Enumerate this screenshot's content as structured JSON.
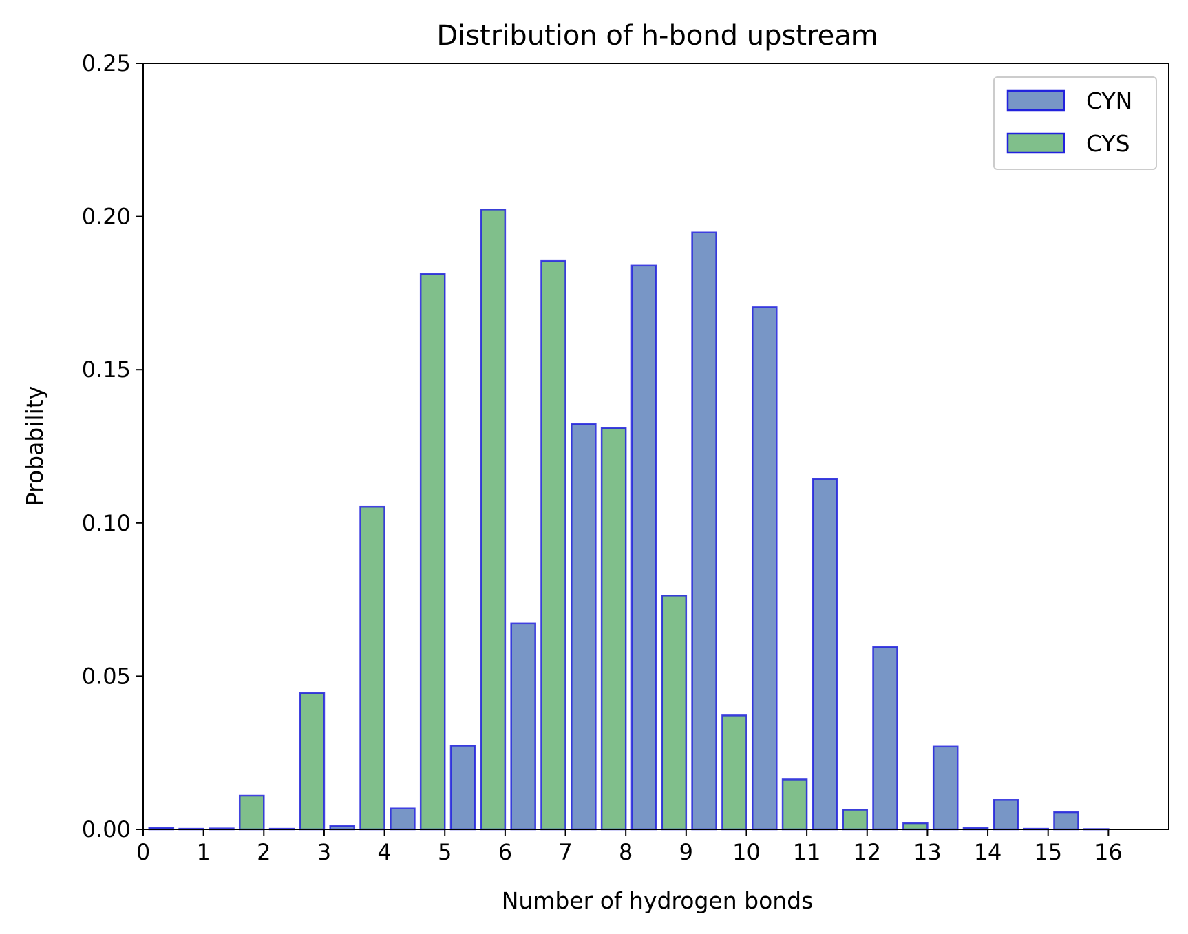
{
  "chart_data": {
    "type": "bar",
    "title": "Distribution of h-bond upstream",
    "xlabel": "Number of hydrogen bonds",
    "ylabel": "Probability",
    "xlim": [
      0,
      17
    ],
    "ylim": [
      0,
      0.25
    ],
    "xticks": [
      "0",
      "1",
      "2",
      "3",
      "4",
      "5",
      "6",
      "7",
      "8",
      "9",
      "10",
      "11",
      "12",
      "13",
      "14",
      "15",
      "16"
    ],
    "yticks": [
      "0.00",
      "0.05",
      "0.10",
      "0.15",
      "0.20",
      "0.25"
    ],
    "grid": false,
    "legend_position": "top-right",
    "edge_color": "#2222dd",
    "series": [
      {
        "name": "CYN",
        "color": "#7896c6",
        "x": [
          0,
          1,
          2,
          3,
          4,
          5,
          6,
          7,
          8,
          9,
          10,
          11,
          12,
          13,
          14,
          15
        ],
        "values": [
          0.0005,
          0.0003,
          0.0002,
          0.0011,
          0.0068,
          0.0273,
          0.0672,
          0.1323,
          0.184,
          0.1948,
          0.1704,
          0.1144,
          0.0595,
          0.027,
          0.0096,
          0.0056
        ]
      },
      {
        "name": "CYS",
        "color": "#80bf8b",
        "x": [
          0,
          1,
          2,
          3,
          4,
          5,
          6,
          7,
          8,
          9,
          10,
          11,
          12,
          13,
          14,
          15
        ],
        "values": [
          0.0002,
          0.011,
          0.0445,
          0.1053,
          0.1813,
          0.2023,
          0.1855,
          0.131,
          0.0763,
          0.0372,
          0.0163,
          0.0064,
          0.002,
          0.0004,
          0.0002,
          0.0001
        ]
      }
    ]
  }
}
